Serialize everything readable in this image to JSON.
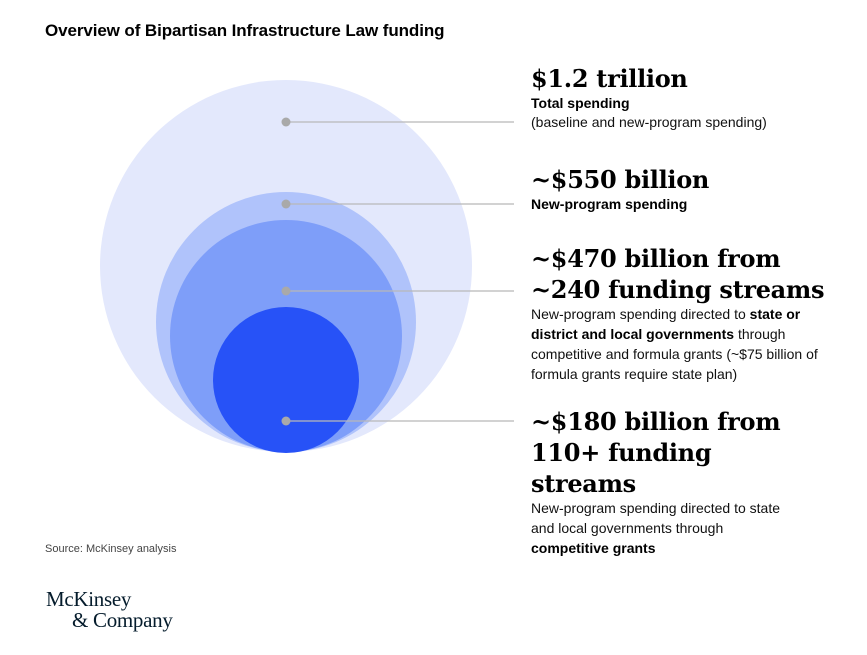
{
  "title": "Overview of Bipartisan Infrastructure Law funding",
  "source": "Source: McKinsey analysis",
  "logo": {
    "line1": "McKinsey",
    "line2": "& Company"
  },
  "colors": {
    "circle1": "#e3e8fc",
    "circle2": "#b0c3fb",
    "circle3": "#7e9ef9",
    "circle4": "#2752f7",
    "connector": "#b8b8b8",
    "dot": "#a9a9a9"
  },
  "items": [
    {
      "headline": "$1.2 trillion",
      "label": "Total spending",
      "detail": "(baseline and new-program spending)",
      "value_billion": 1200
    },
    {
      "headline": "~$550 billion",
      "label": "New-program spending",
      "value_billion": 550
    },
    {
      "headline_line1": "~$470 billion from",
      "headline_line2": "~240 funding streams",
      "detail_pre": "New-program spending directed to ",
      "detail_bold": "state or district and local governments",
      "detail_post": " through competitive and formula grants (~$75 billion of formula grants require state plan)",
      "value_billion": 470,
      "funding_streams": 240
    },
    {
      "headline_line1": "~$180 billion from",
      "headline_line2": "110+ funding streams",
      "detail": "New-program spending directed to state and local governments through",
      "detail_bold": "competitive grants",
      "value_billion": 180,
      "funding_streams": 110
    }
  ]
}
